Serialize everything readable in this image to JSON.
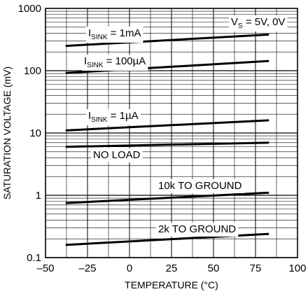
{
  "chart_data": {
    "type": "line",
    "xlabel": "TEMPERATURE (°C)",
    "ylabel": "SATURATION VOLTAGE (mV)",
    "xlim": [
      -50,
      100
    ],
    "ylim": [
      0.1,
      1000
    ],
    "yscale": "log",
    "grid": true,
    "x_ticks": [
      "–50",
      "–25",
      "0",
      "25",
      "50",
      "75",
      "100"
    ],
    "y_ticks": [
      "0.1",
      "1",
      "10",
      "100",
      "1000"
    ],
    "condition": {
      "main": "V",
      "sub": "S",
      "rest": " = 5V, 0V"
    },
    "series": [
      {
        "name": "ISINK = 1mA",
        "label_main": "I",
        "label_sub": "SINK",
        "label_rest": " = 1mA",
        "x": [
          -38,
          83
        ],
        "y": [
          250,
          380
        ]
      },
      {
        "name": "ISINK = 100µA",
        "label_main": "I",
        "label_sub": "SINK",
        "label_rest": " = 100µA",
        "x": [
          -38,
          83
        ],
        "y": [
          92,
          143
        ]
      },
      {
        "name": "ISINK = 1µA",
        "label_main": "I",
        "label_sub": "SINK",
        "label_rest": " = 1µA",
        "x": [
          -38,
          83
        ],
        "y": [
          11,
          16
        ]
      },
      {
        "name": "NO LOAD",
        "label_main": "NO LOAD",
        "label_sub": "",
        "label_rest": "",
        "x": [
          -38,
          83
        ],
        "y": [
          6,
          7
        ]
      },
      {
        "name": "10k TO GROUND",
        "label_main": "10k TO GROUND",
        "label_sub": "",
        "label_rest": "",
        "x": [
          -38,
          83
        ],
        "y": [
          0.75,
          1.1
        ]
      },
      {
        "name": "2k TO GROUND",
        "label_main": "2k TO GROUND",
        "label_sub": "",
        "label_rest": "",
        "x": [
          -38,
          83
        ],
        "y": [
          0.16,
          0.24
        ]
      }
    ]
  }
}
